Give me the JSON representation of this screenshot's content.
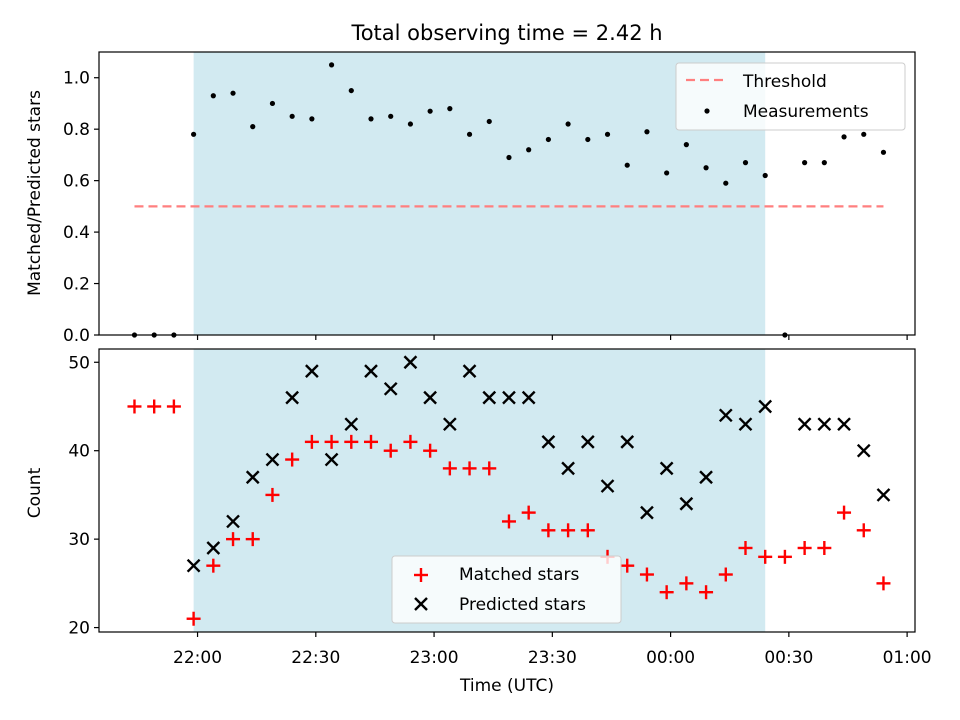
{
  "figure": {
    "title": "Total observing time = 2.42 h",
    "xlabel": "Time (UTC)"
  },
  "colors": {
    "shade": "#add8e6",
    "threshold": "#ff7f7f",
    "measurement": "#000000",
    "matched": "#ff0000",
    "predicted": "#000000"
  },
  "chart_data": [
    {
      "type": "scatter",
      "title": "Total observing time = 2.42 h",
      "xlabel": "",
      "ylabel": "Matched/Predicted stars",
      "xlim": [
        "21:35",
        "01:02"
      ],
      "ylim": [
        0,
        1.1
      ],
      "x_ticks": [
        "22:00",
        "22:30",
        "23:00",
        "23:30",
        "00:00",
        "00:30",
        "01:00"
      ],
      "y_ticks": [
        "0.0",
        "0.2",
        "0.4",
        "0.6",
        "0.8",
        "1.0"
      ],
      "shaded_span": [
        "21:59",
        "00:24"
      ],
      "legend": {
        "position": "top-right",
        "entries": [
          "Threshold",
          "Measurements"
        ]
      },
      "threshold": {
        "name": "Threshold",
        "value": 0.5,
        "x_start": "21:44",
        "x_end": "00:54",
        "style": "dashed"
      },
      "series": [
        {
          "name": "Measurements",
          "x": [
            "21:44",
            "21:49",
            "21:54",
            "21:59",
            "22:04",
            "22:09",
            "22:14",
            "22:19",
            "22:24",
            "22:29",
            "22:34",
            "22:39",
            "22:44",
            "22:49",
            "22:54",
            "22:59",
            "23:04",
            "23:09",
            "23:14",
            "23:19",
            "23:24",
            "23:29",
            "23:34",
            "23:39",
            "23:44",
            "23:49",
            "23:54",
            "23:59",
            "00:04",
            "00:09",
            "00:14",
            "00:19",
            "00:24",
            "00:29",
            "00:34",
            "00:39",
            "00:44",
            "00:49",
            "00:54"
          ],
          "y": [
            0.0,
            0.0,
            0.0,
            0.78,
            0.93,
            0.94,
            0.81,
            0.9,
            0.85,
            0.84,
            1.05,
            0.95,
            0.84,
            0.85,
            0.82,
            0.87,
            0.88,
            0.78,
            0.83,
            0.69,
            0.72,
            0.76,
            0.82,
            0.76,
            0.78,
            0.66,
            0.79,
            0.63,
            0.74,
            0.65,
            0.59,
            0.67,
            0.62,
            0.0,
            0.67,
            0.67,
            0.77,
            0.78,
            0.71
          ]
        }
      ]
    },
    {
      "type": "scatter",
      "title": "",
      "xlabel": "Time (UTC)",
      "ylabel": "Count",
      "xlim": [
        "21:35",
        "01:02"
      ],
      "ylim": [
        19.5,
        51.5
      ],
      "x_ticks": [
        "22:00",
        "22:30",
        "23:00",
        "23:30",
        "00:00",
        "00:30",
        "01:00"
      ],
      "y_ticks": [
        "20",
        "30",
        "40",
        "50"
      ],
      "shaded_span": [
        "21:59",
        "00:24"
      ],
      "legend": {
        "position": "lower-center",
        "entries": [
          "Matched stars",
          "Predicted stars"
        ]
      },
      "series": [
        {
          "name": "Matched stars",
          "marker": "+",
          "x": [
            "21:44",
            "21:49",
            "21:54",
            "21:59",
            "22:04",
            "22:09",
            "22:14",
            "22:19",
            "22:24",
            "22:29",
            "22:34",
            "22:39",
            "22:44",
            "22:49",
            "22:54",
            "22:59",
            "23:04",
            "23:09",
            "23:14",
            "23:19",
            "23:24",
            "23:29",
            "23:34",
            "23:39",
            "23:44",
            "23:49",
            "23:54",
            "23:59",
            "00:04",
            "00:09",
            "00:14",
            "00:19",
            "00:24",
            "00:29",
            "00:34",
            "00:39",
            "00:44",
            "00:49",
            "00:54"
          ],
          "y": [
            45,
            45,
            45,
            21,
            27,
            30,
            30,
            35,
            39,
            41,
            41,
            41,
            41,
            40,
            41,
            40,
            38,
            38,
            38,
            32,
            33,
            31,
            31,
            31,
            28,
            27,
            26,
            24,
            25,
            24,
            26,
            29,
            28,
            28,
            29,
            29,
            33,
            31,
            25
          ]
        },
        {
          "name": "Predicted stars",
          "marker": "x",
          "x": [
            "21:59",
            "22:04",
            "22:09",
            "22:14",
            "22:19",
            "22:24",
            "22:29",
            "22:34",
            "22:39",
            "22:44",
            "22:49",
            "22:54",
            "22:59",
            "23:04",
            "23:09",
            "23:14",
            "23:19",
            "23:24",
            "23:29",
            "23:34",
            "23:39",
            "23:44",
            "23:49",
            "23:54",
            "23:59",
            "00:04",
            "00:09",
            "00:14",
            "00:19",
            "00:24",
            "00:34",
            "00:39",
            "00:44",
            "00:49",
            "00:54"
          ],
          "y": [
            27,
            29,
            32,
            37,
            39,
            46,
            49,
            39,
            43,
            49,
            47,
            50,
            46,
            43,
            49,
            46,
            46,
            46,
            41,
            38,
            41,
            36,
            41,
            33,
            38,
            34,
            37,
            44,
            43,
            45,
            43,
            43,
            43,
            40,
            35
          ]
        }
      ]
    }
  ]
}
